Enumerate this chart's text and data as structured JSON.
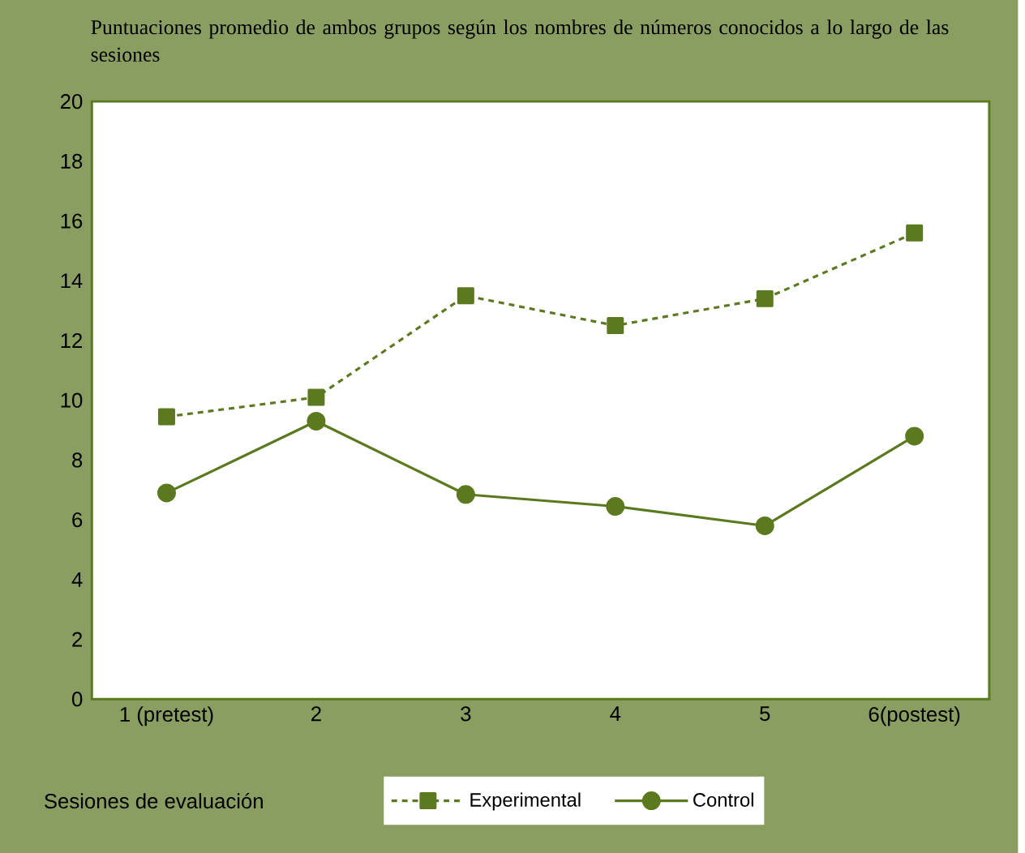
{
  "chart_data": {
    "type": "line",
    "title": "Puntuaciones promedio de ambos grupos según los nombres de números conocidos a lo largo de las sesiones",
    "xlabel": "Sesiones de evaluación",
    "categories": [
      "1 (pretest)",
      "2",
      "3",
      "4",
      "5",
      "6(postest)"
    ],
    "series": [
      {
        "name": "Experimental",
        "color": "#5b7a1f",
        "marker": "square",
        "line_style": "dashed",
        "values": [
          9.45,
          10.1,
          13.5,
          12.5,
          13.4,
          15.6
        ]
      },
      {
        "name": "Control",
        "color": "#5b7a1f",
        "marker": "circle",
        "line_style": "solid",
        "values": [
          6.9,
          9.3,
          6.85,
          6.45,
          5.8,
          8.8
        ]
      }
    ],
    "ylim": [
      0,
      20
    ],
    "yticks": [
      0,
      2,
      4,
      6,
      8,
      10,
      12,
      14,
      16,
      18,
      20
    ],
    "grid": false,
    "legend": "bottom"
  }
}
